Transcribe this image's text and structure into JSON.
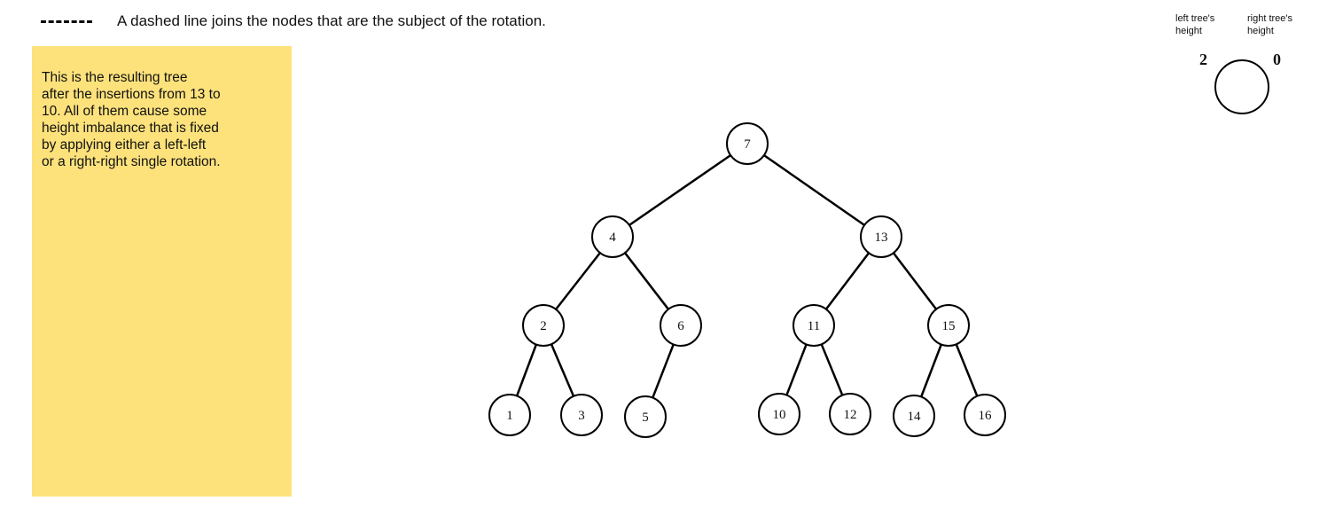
{
  "legend": {
    "dashed_line_text": "A dashed line joins the nodes that are the subject of the rotation."
  },
  "note": {
    "lines": [
      "This is the resulting tree",
      "after the insertions from 13 to",
      "10.  All of them cause some",
      "height imbalance that is fixed",
      "by applying either a left-left",
      "or a right-right single rotation."
    ]
  },
  "balance_key": {
    "left_label_line1": "left tree's",
    "left_label_line2": "height",
    "right_label_line1": "right tree's",
    "right_label_line2": "height",
    "left_value": "2",
    "right_value": "0"
  },
  "tree": {
    "nodes": [
      {
        "id": "n7",
        "label": "7"
      },
      {
        "id": "n4",
        "label": "4"
      },
      {
        "id": "n13",
        "label": "13"
      },
      {
        "id": "n2",
        "label": "2"
      },
      {
        "id": "n6",
        "label": "6"
      },
      {
        "id": "n11",
        "label": "11"
      },
      {
        "id": "n15",
        "label": "15"
      },
      {
        "id": "n1",
        "label": "1"
      },
      {
        "id": "n3",
        "label": "3"
      },
      {
        "id": "n5",
        "label": "5"
      },
      {
        "id": "n10",
        "label": "10"
      },
      {
        "id": "n12",
        "label": "12"
      },
      {
        "id": "n14",
        "label": "14"
      },
      {
        "id": "n16",
        "label": "16"
      }
    ],
    "edges": [
      [
        "n7",
        "n4"
      ],
      [
        "n7",
        "n13"
      ],
      [
        "n4",
        "n2"
      ],
      [
        "n4",
        "n6"
      ],
      [
        "n13",
        "n11"
      ],
      [
        "n13",
        "n15"
      ],
      [
        "n2",
        "n1"
      ],
      [
        "n2",
        "n3"
      ],
      [
        "n6",
        "n5"
      ],
      [
        "n11",
        "n10"
      ],
      [
        "n11",
        "n12"
      ],
      [
        "n15",
        "n14"
      ],
      [
        "n15",
        "n16"
      ]
    ]
  },
  "colors": {
    "note_background": "#fde27c",
    "line": "#000000",
    "text": "#111111"
  }
}
